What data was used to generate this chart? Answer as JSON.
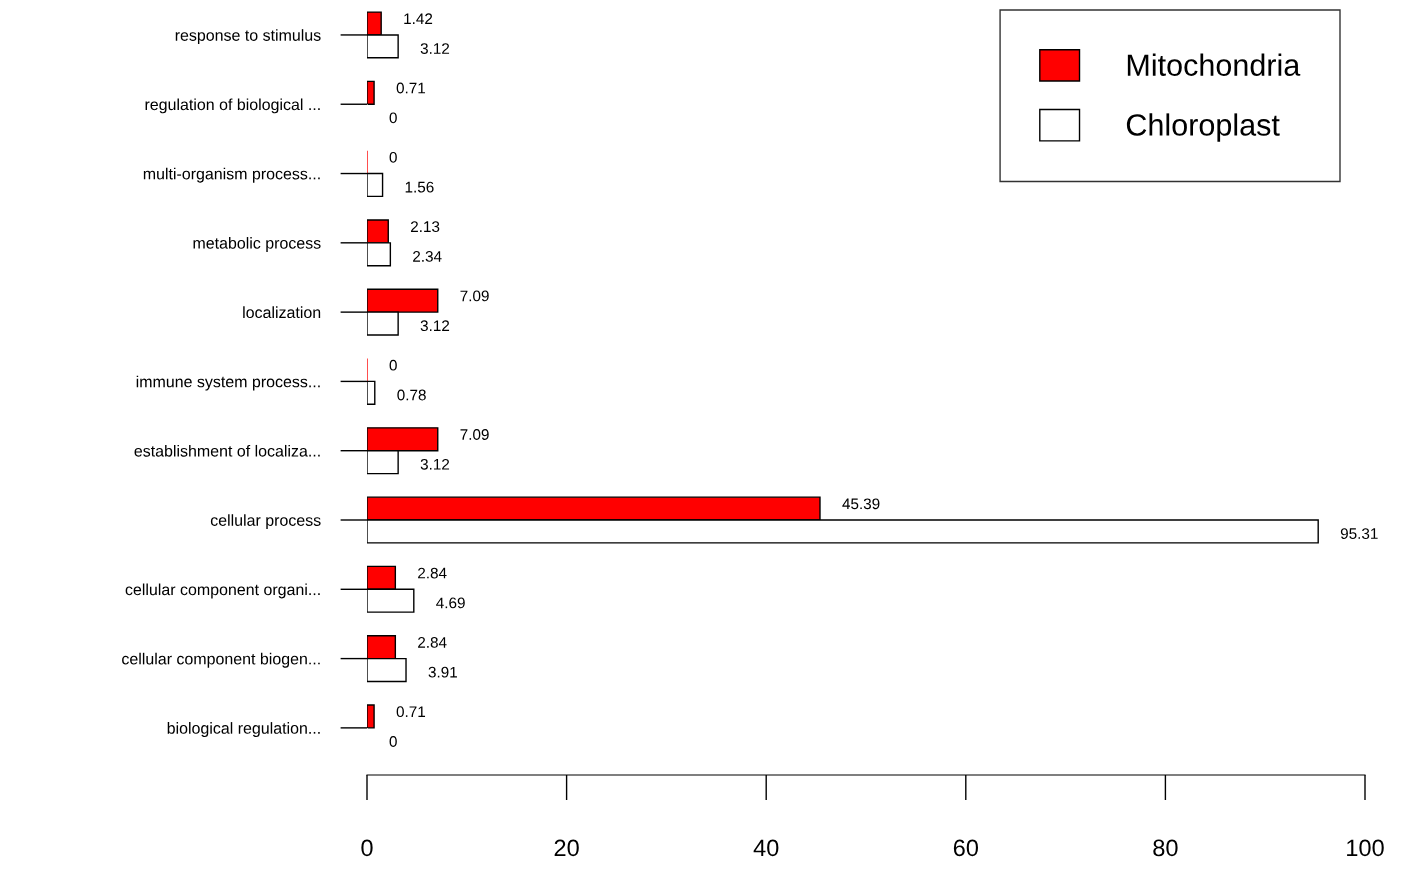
{
  "chart_data": {
    "type": "bar",
    "orientation": "horizontal",
    "categories": [
      "response to stimulus",
      "regulation of biological ...",
      "multi-organism process...",
      "metabolic process",
      "localization",
      "immune system process...",
      "establishment of localiza...",
      "cellular process",
      "cellular component organi...",
      "cellular component biogen...",
      "biological regulation..."
    ],
    "series": [
      {
        "name": "Mitochondria",
        "color": "#ff0000",
        "values": [
          1.42,
          0.71,
          0,
          2.13,
          7.09,
          0,
          7.09,
          45.39,
          2.84,
          2.84,
          0.71
        ]
      },
      {
        "name": "Chloroplast",
        "color": "#ffffff",
        "values": [
          3.12,
          0,
          1.56,
          2.34,
          3.12,
          0.78,
          3.12,
          95.31,
          4.69,
          3.91,
          0
        ]
      }
    ],
    "xlim": [
      0,
      100
    ],
    "xticks": [
      0,
      20,
      40,
      60,
      80,
      100
    ],
    "data_labels": true,
    "legend": "top right",
    "grid": false
  }
}
